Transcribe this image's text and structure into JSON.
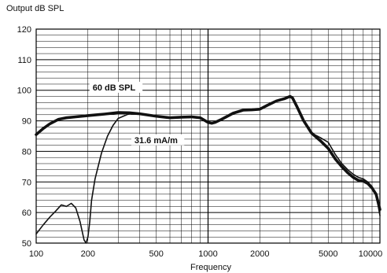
{
  "chart_data": {
    "type": "line",
    "title": "",
    "ylabel": "Output dB SPL",
    "xlabel": "Frequency",
    "x_scale": "log",
    "xlim": [
      100,
      10000
    ],
    "ylim": [
      50,
      120
    ],
    "grid": true,
    "y_ticks": [
      50,
      60,
      70,
      80,
      90,
      100,
      110,
      120
    ],
    "x_ticks": [
      {
        "value": 100,
        "label": "100"
      },
      {
        "value": 200,
        "label": "200"
      },
      {
        "value": 500,
        "label": "500"
      },
      {
        "value": 1000,
        "label": "1000"
      },
      {
        "value": 2000,
        "label": "2000"
      },
      {
        "value": 5000,
        "label": "5000"
      },
      {
        "value": 10000,
        "label": "10000"
      }
    ],
    "series": [
      {
        "name": "60 dB SPL",
        "line": "thick",
        "x": [
          100,
          110,
          120,
          135,
          150,
          170,
          200,
          250,
          300,
          350,
          400,
          500,
          600,
          700,
          800,
          900,
          1000,
          1050,
          1100,
          1200,
          1400,
          1600,
          1800,
          2000,
          2200,
          2500,
          2800,
          3000,
          3100,
          3300,
          3600,
          4000,
          4500,
          5000,
          5500,
          6000,
          6500,
          7000,
          7500,
          8000,
          8500,
          9000,
          9500,
          10000
        ],
        "y": [
          85.5,
          87.5,
          89,
          90.5,
          91,
          91.3,
          91.7,
          92.2,
          92.7,
          92.6,
          92.3,
          91.5,
          91,
          91.2,
          91.3,
          91,
          89.5,
          89.2,
          89.5,
          90.5,
          92.5,
          93.5,
          93.6,
          93.8,
          95,
          96.5,
          97.3,
          98,
          97.5,
          94.5,
          90,
          86,
          83.5,
          81,
          77.5,
          75,
          73,
          71.5,
          70.5,
          70.3,
          69.5,
          68,
          66,
          61
        ]
      },
      {
        "name": "31.6 mA/m",
        "line": "thin",
        "x": [
          100,
          110,
          120,
          130,
          140,
          150,
          160,
          170,
          180,
          190,
          195,
          200,
          205,
          210,
          220,
          240,
          260,
          280,
          300,
          350,
          400,
          500,
          600,
          700,
          800,
          900,
          1000,
          1050,
          1100,
          1200,
          1400,
          1600,
          1800,
          2000,
          2200,
          2500,
          2800,
          3000,
          3100,
          3300,
          3600,
          4000,
          4500,
          5000,
          5500,
          6000,
          6500,
          7000,
          7500,
          8000,
          8500,
          9000,
          9500,
          10000
        ],
        "y": [
          53,
          56,
          58.5,
          60.5,
          62.5,
          62,
          63,
          61.5,
          57,
          51,
          50,
          52,
          57,
          64,
          71,
          79.5,
          85,
          88.5,
          90.8,
          92.4,
          92.2,
          91.6,
          91,
          91.2,
          91.3,
          91,
          89.5,
          89.2,
          89.5,
          90.5,
          92.5,
          93.5,
          93.6,
          93.8,
          95,
          96.5,
          97.3,
          98,
          97.5,
          94.5,
          90,
          86,
          84.5,
          83,
          79,
          76,
          74,
          72.5,
          71.5,
          71,
          70,
          68.5,
          66,
          59
        ]
      }
    ],
    "annotations": [
      {
        "text": "60 dB SPL",
        "x": 200,
        "y": 100.2
      },
      {
        "text": "31.6 mA/m",
        "x": 350,
        "y": 83
      }
    ]
  }
}
